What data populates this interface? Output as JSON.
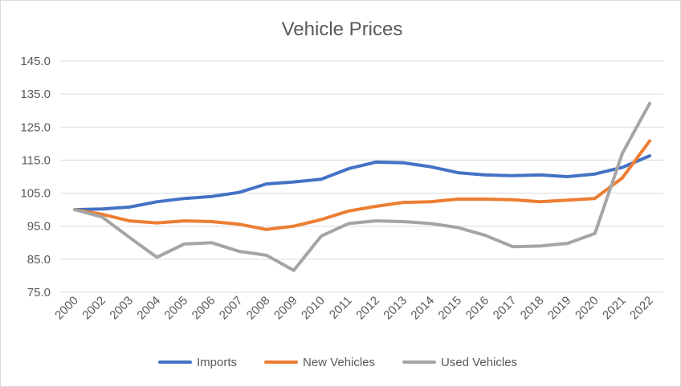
{
  "chart_data": {
    "type": "line",
    "title": "Vehicle Prices",
    "xlabel": "",
    "ylabel": "",
    "categories": [
      "2000",
      "2002",
      "2003",
      "2004",
      "2005",
      "2006",
      "2007",
      "2008",
      "2009",
      "2010",
      "2011",
      "2012",
      "2013",
      "2014",
      "2015",
      "2016",
      "2017",
      "2018",
      "2019",
      "2020",
      "2021",
      "2022"
    ],
    "ylim": [
      75,
      145
    ],
    "yticks": [
      "75.0",
      "85.0",
      "95.0",
      "105.0",
      "115.0",
      "125.0",
      "135.0",
      "145.0"
    ],
    "grid": true,
    "legend_position": "bottom",
    "series": [
      {
        "name": "Imports",
        "color": "#4472C4",
        "values": [
          100.0,
          100.2,
          100.8,
          102.4,
          103.4,
          104.0,
          105.2,
          107.8,
          108.4,
          109.2,
          112.4,
          114.4,
          114.2,
          113.0,
          111.2,
          110.5,
          110.3,
          110.5,
          110.0,
          110.8,
          112.8,
          116.3
        ]
      },
      {
        "name": "New Vehicles",
        "color": "#ED7D31",
        "values": [
          100.0,
          98.6,
          96.6,
          96.0,
          96.6,
          96.4,
          95.6,
          94.0,
          95.0,
          97.0,
          99.6,
          101.0,
          102.2,
          102.4,
          103.2,
          103.2,
          103.0,
          102.4,
          102.9,
          103.4,
          109.6,
          120.8
        ]
      },
      {
        "name": "Used Vehicles",
        "color": "#A5A5A5",
        "values": [
          100.0,
          97.8,
          91.6,
          85.6,
          89.6,
          90.0,
          87.4,
          86.2,
          81.6,
          92.0,
          95.8,
          96.6,
          96.4,
          95.8,
          94.6,
          92.2,
          88.8,
          89.0,
          89.8,
          92.8,
          117.0,
          132.2
        ]
      }
    ]
  }
}
